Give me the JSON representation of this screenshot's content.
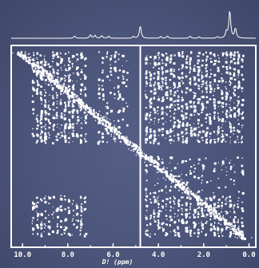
{
  "chart_data": {
    "type": "scatter",
    "subtype": "2D NMR correlation map with 1D projection spectrum",
    "xlabel": "D! (ppm)",
    "x_tick_labels": [
      "10.0",
      "8.0",
      "6.0",
      "4.0",
      "2.0",
      "0.0"
    ],
    "xlim": [
      10.5,
      -0.3
    ],
    "ylim": [
      -0.3,
      10.5
    ],
    "axis_direction": "reversed (ppm decreasing left to right)",
    "grid": false,
    "legend": "none",
    "divider_at_ppm": 4.8,
    "colors": {
      "background": "#4b5479",
      "foreground": "#ffffff"
    },
    "projection_peaks": [
      {
        "ppm": 7.7,
        "height": 0.08
      },
      {
        "ppm": 7.0,
        "height": 0.12
      },
      {
        "ppm": 6.8,
        "height": 0.1
      },
      {
        "ppm": 6.5,
        "height": 0.09
      },
      {
        "ppm": 6.2,
        "height": 0.07
      },
      {
        "ppm": 5.1,
        "height": 0.06
      },
      {
        "ppm": 4.8,
        "height": 0.45
      },
      {
        "ppm": 3.9,
        "height": 0.06
      },
      {
        "ppm": 3.6,
        "height": 0.08
      },
      {
        "ppm": 2.6,
        "height": 0.07
      },
      {
        "ppm": 2.2,
        "height": 0.05
      },
      {
        "ppm": 1.4,
        "height": 0.05
      },
      {
        "ppm": 1.0,
        "height": 0.22
      },
      {
        "ppm": 0.85,
        "height": 1.0
      },
      {
        "ppm": 0.6,
        "height": 0.35
      }
    ],
    "cross_peak_regions": [
      {
        "x_ppm": [
          7.2,
          9.6
        ],
        "y_ppm": [
          5.3,
          10.2
        ],
        "density": 0.55
      },
      {
        "x_ppm": [
          0.2,
          4.6
        ],
        "y_ppm": [
          5.3,
          10.2
        ],
        "density": 0.55
      },
      {
        "x_ppm": [
          7.2,
          9.6
        ],
        "y_ppm": [
          0.3,
          2.5
        ],
        "density": 0.45
      },
      {
        "x_ppm": [
          0.2,
          4.6
        ],
        "y_ppm": [
          0.3,
          2.5
        ],
        "density": 0.5
      },
      {
        "x_ppm": [
          5.3,
          6.7
        ],
        "y_ppm": [
          5.3,
          10.2
        ],
        "density": 0.25
      },
      {
        "x_ppm": [
          0.2,
          4.6
        ],
        "y_ppm": [
          2.6,
          4.6
        ],
        "density": 0.2
      }
    ],
    "diagonal": {
      "from_ppm": 10.2,
      "to_ppm": 0.2,
      "width_ppm": 0.35
    }
  }
}
